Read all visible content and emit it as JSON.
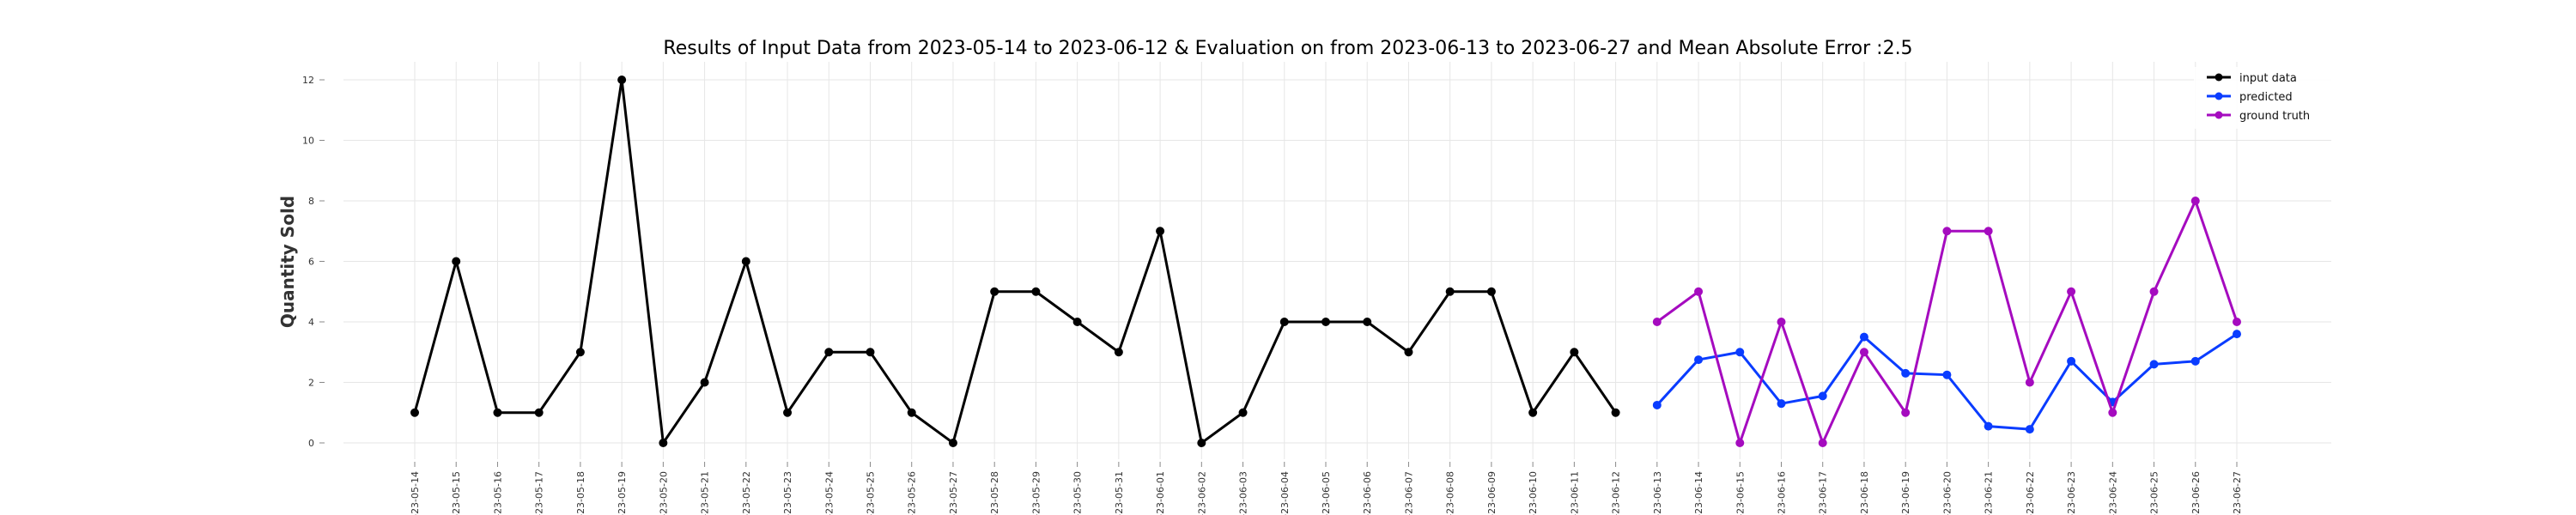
{
  "chart_data": {
    "type": "line",
    "title": "Results of Input Data from 2023-05-14 to 2023-06-12 & Evaluation on from 2023-06-13 to 2023-06-27 and Mean Absolute Error  :2.5",
    "xlabel": "",
    "ylabel": "Quantity Sold",
    "ylim": [
      0,
      12.5
    ],
    "y_ticks": [
      0,
      2,
      4,
      6,
      8,
      10,
      12
    ],
    "grid": true,
    "legend_position": "top-right",
    "x": [
      "2023-05-14",
      "2023-05-15",
      "2023-05-16",
      "2023-05-17",
      "2023-05-18",
      "2023-05-19",
      "2023-05-20",
      "2023-05-21",
      "2023-05-22",
      "2023-05-23",
      "2023-05-24",
      "2023-05-25",
      "2023-05-26",
      "2023-05-27",
      "2023-05-28",
      "2023-05-29",
      "2023-05-30",
      "2023-05-31",
      "2023-06-01",
      "2023-06-02",
      "2023-06-03",
      "2023-06-04",
      "2023-06-05",
      "2023-06-06",
      "2023-06-07",
      "2023-06-08",
      "2023-06-09",
      "2023-06-10",
      "2023-06-11",
      "2023-06-12",
      "2023-06-13",
      "2023-06-14",
      "2023-06-15",
      "2023-06-16",
      "2023-06-17",
      "2023-06-18",
      "2023-06-19",
      "2023-06-20",
      "2023-06-21",
      "2023-06-22",
      "2023-06-23",
      "2023-06-24",
      "2023-06-25",
      "2023-06-26",
      "2023-06-27"
    ],
    "x_tick_labels": [
      "-23-05-14",
      "-23-05-15",
      "-23-05-16",
      "-23-05-17",
      "-23-05-18",
      "-23-05-19",
      "-23-05-20",
      "-23-05-21",
      "-23-05-22",
      "-23-05-23",
      "-23-05-24",
      "-23-05-25",
      "-23-05-26",
      "-23-05-27",
      "-23-05-28",
      "-23-05-29",
      "-23-05-30",
      "-23-05-31",
      "-23-06-01",
      "-23-06-02",
      "-23-06-03",
      "-23-06-04",
      "-23-06-05",
      "-23-06-06",
      "-23-06-07",
      "-23-06-08",
      "-23-06-09",
      "-23-06-10",
      "-23-06-11",
      "-23-06-12",
      "-23-06-13",
      "-23-06-14",
      "-23-06-15",
      "-23-06-16",
      "-23-06-17",
      "-23-06-18",
      "-23-06-19",
      "-23-06-20",
      "-23-06-21",
      "-23-06-22",
      "-23-06-23",
      "-23-06-24",
      "-23-06-25",
      "-23-06-26",
      "-23-06-27"
    ],
    "series": [
      {
        "name": "input data",
        "color": "#000000",
        "x": [
          "2023-05-14",
          "2023-05-15",
          "2023-05-16",
          "2023-05-17",
          "2023-05-18",
          "2023-05-19",
          "2023-05-20",
          "2023-05-21",
          "2023-05-22",
          "2023-05-23",
          "2023-05-24",
          "2023-05-25",
          "2023-05-26",
          "2023-05-27",
          "2023-05-28",
          "2023-05-29",
          "2023-05-30",
          "2023-05-31",
          "2023-06-01",
          "2023-06-02",
          "2023-06-03",
          "2023-06-04",
          "2023-06-05",
          "2023-06-06",
          "2023-06-07",
          "2023-06-08",
          "2023-06-09",
          "2023-06-10",
          "2023-06-11",
          "2023-06-12"
        ],
        "values": [
          1,
          6,
          1,
          1,
          3,
          12,
          0,
          2,
          6,
          1,
          3,
          3,
          1,
          0,
          5,
          5,
          4,
          3,
          7,
          0,
          1,
          4,
          4,
          4,
          3,
          5,
          5,
          1,
          3,
          1
        ]
      },
      {
        "name": "predicted",
        "color": "#0a3cff",
        "x": [
          "2023-06-13",
          "2023-06-14",
          "2023-06-15",
          "2023-06-16",
          "2023-06-17",
          "2023-06-18",
          "2023-06-19",
          "2023-06-20",
          "2023-06-21",
          "2023-06-22",
          "2023-06-23",
          "2023-06-24",
          "2023-06-25",
          "2023-06-26",
          "2023-06-27"
        ],
        "values": [
          1.25,
          2.75,
          3.0,
          1.3,
          1.55,
          3.5,
          2.3,
          2.25,
          0.55,
          0.45,
          2.7,
          1.35,
          2.6,
          2.7,
          3.6
        ]
      },
      {
        "name": "ground truth",
        "color": "#a50bbf",
        "x": [
          "2023-06-13",
          "2023-06-14",
          "2023-06-15",
          "2023-06-16",
          "2023-06-17",
          "2023-06-18",
          "2023-06-19",
          "2023-06-20",
          "2023-06-21",
          "2023-06-22",
          "2023-06-23",
          "2023-06-24",
          "2023-06-25",
          "2023-06-26",
          "2023-06-27"
        ],
        "values": [
          4,
          5,
          0,
          4,
          0,
          3,
          1,
          7,
          7,
          2,
          5,
          1,
          5,
          8,
          4
        ]
      }
    ]
  }
}
